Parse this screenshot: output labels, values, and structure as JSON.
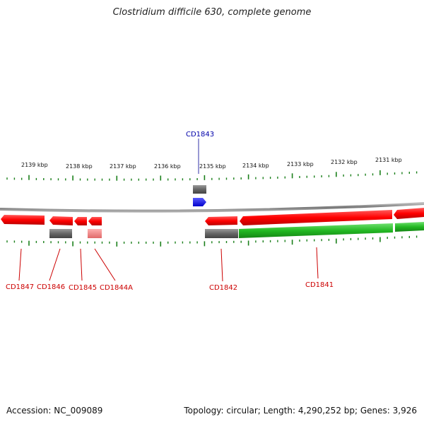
{
  "title": "Clostridium difficile 630, complete genome",
  "footer": {
    "accession": "Accession: NC_009089",
    "summary": "Topology: circular; Length: 4,290,252 bp; Genes: 3,926"
  },
  "colors": {
    "forward_cds": "#ff0000",
    "reverse_cds": "#ff0000",
    "pseudo_cds": "#ef8080",
    "gene_gray": "#666666",
    "green_feature": "#22b822",
    "blue_feature": "#0000ee",
    "tick": "#1a7f1a",
    "label_red": "#cc0000",
    "label_blue": "#0000aa",
    "backbone": "#888888"
  },
  "ruler": {
    "labels": [
      "2139 kbp",
      "2138 kbp",
      "2137 kbp",
      "2136 kbp",
      "2135 kbp",
      "2134 kbp",
      "2133 kbp",
      "2132 kbp",
      "2131 kbp"
    ]
  },
  "genes": [
    {
      "id": "CD1847",
      "label": "CD1847",
      "color": "red"
    },
    {
      "id": "CD1846",
      "label": "CD1846",
      "color": "red"
    },
    {
      "id": "CD1845",
      "label": "CD1845",
      "color": "red"
    },
    {
      "id": "CD1844A",
      "label": "CD1844A",
      "color": "red"
    },
    {
      "id": "CD1843",
      "label": "CD1843",
      "color": "blue"
    },
    {
      "id": "CD1842",
      "label": "CD1842",
      "color": "red"
    },
    {
      "id": "CD1841",
      "label": "CD1841",
      "color": "red"
    }
  ]
}
